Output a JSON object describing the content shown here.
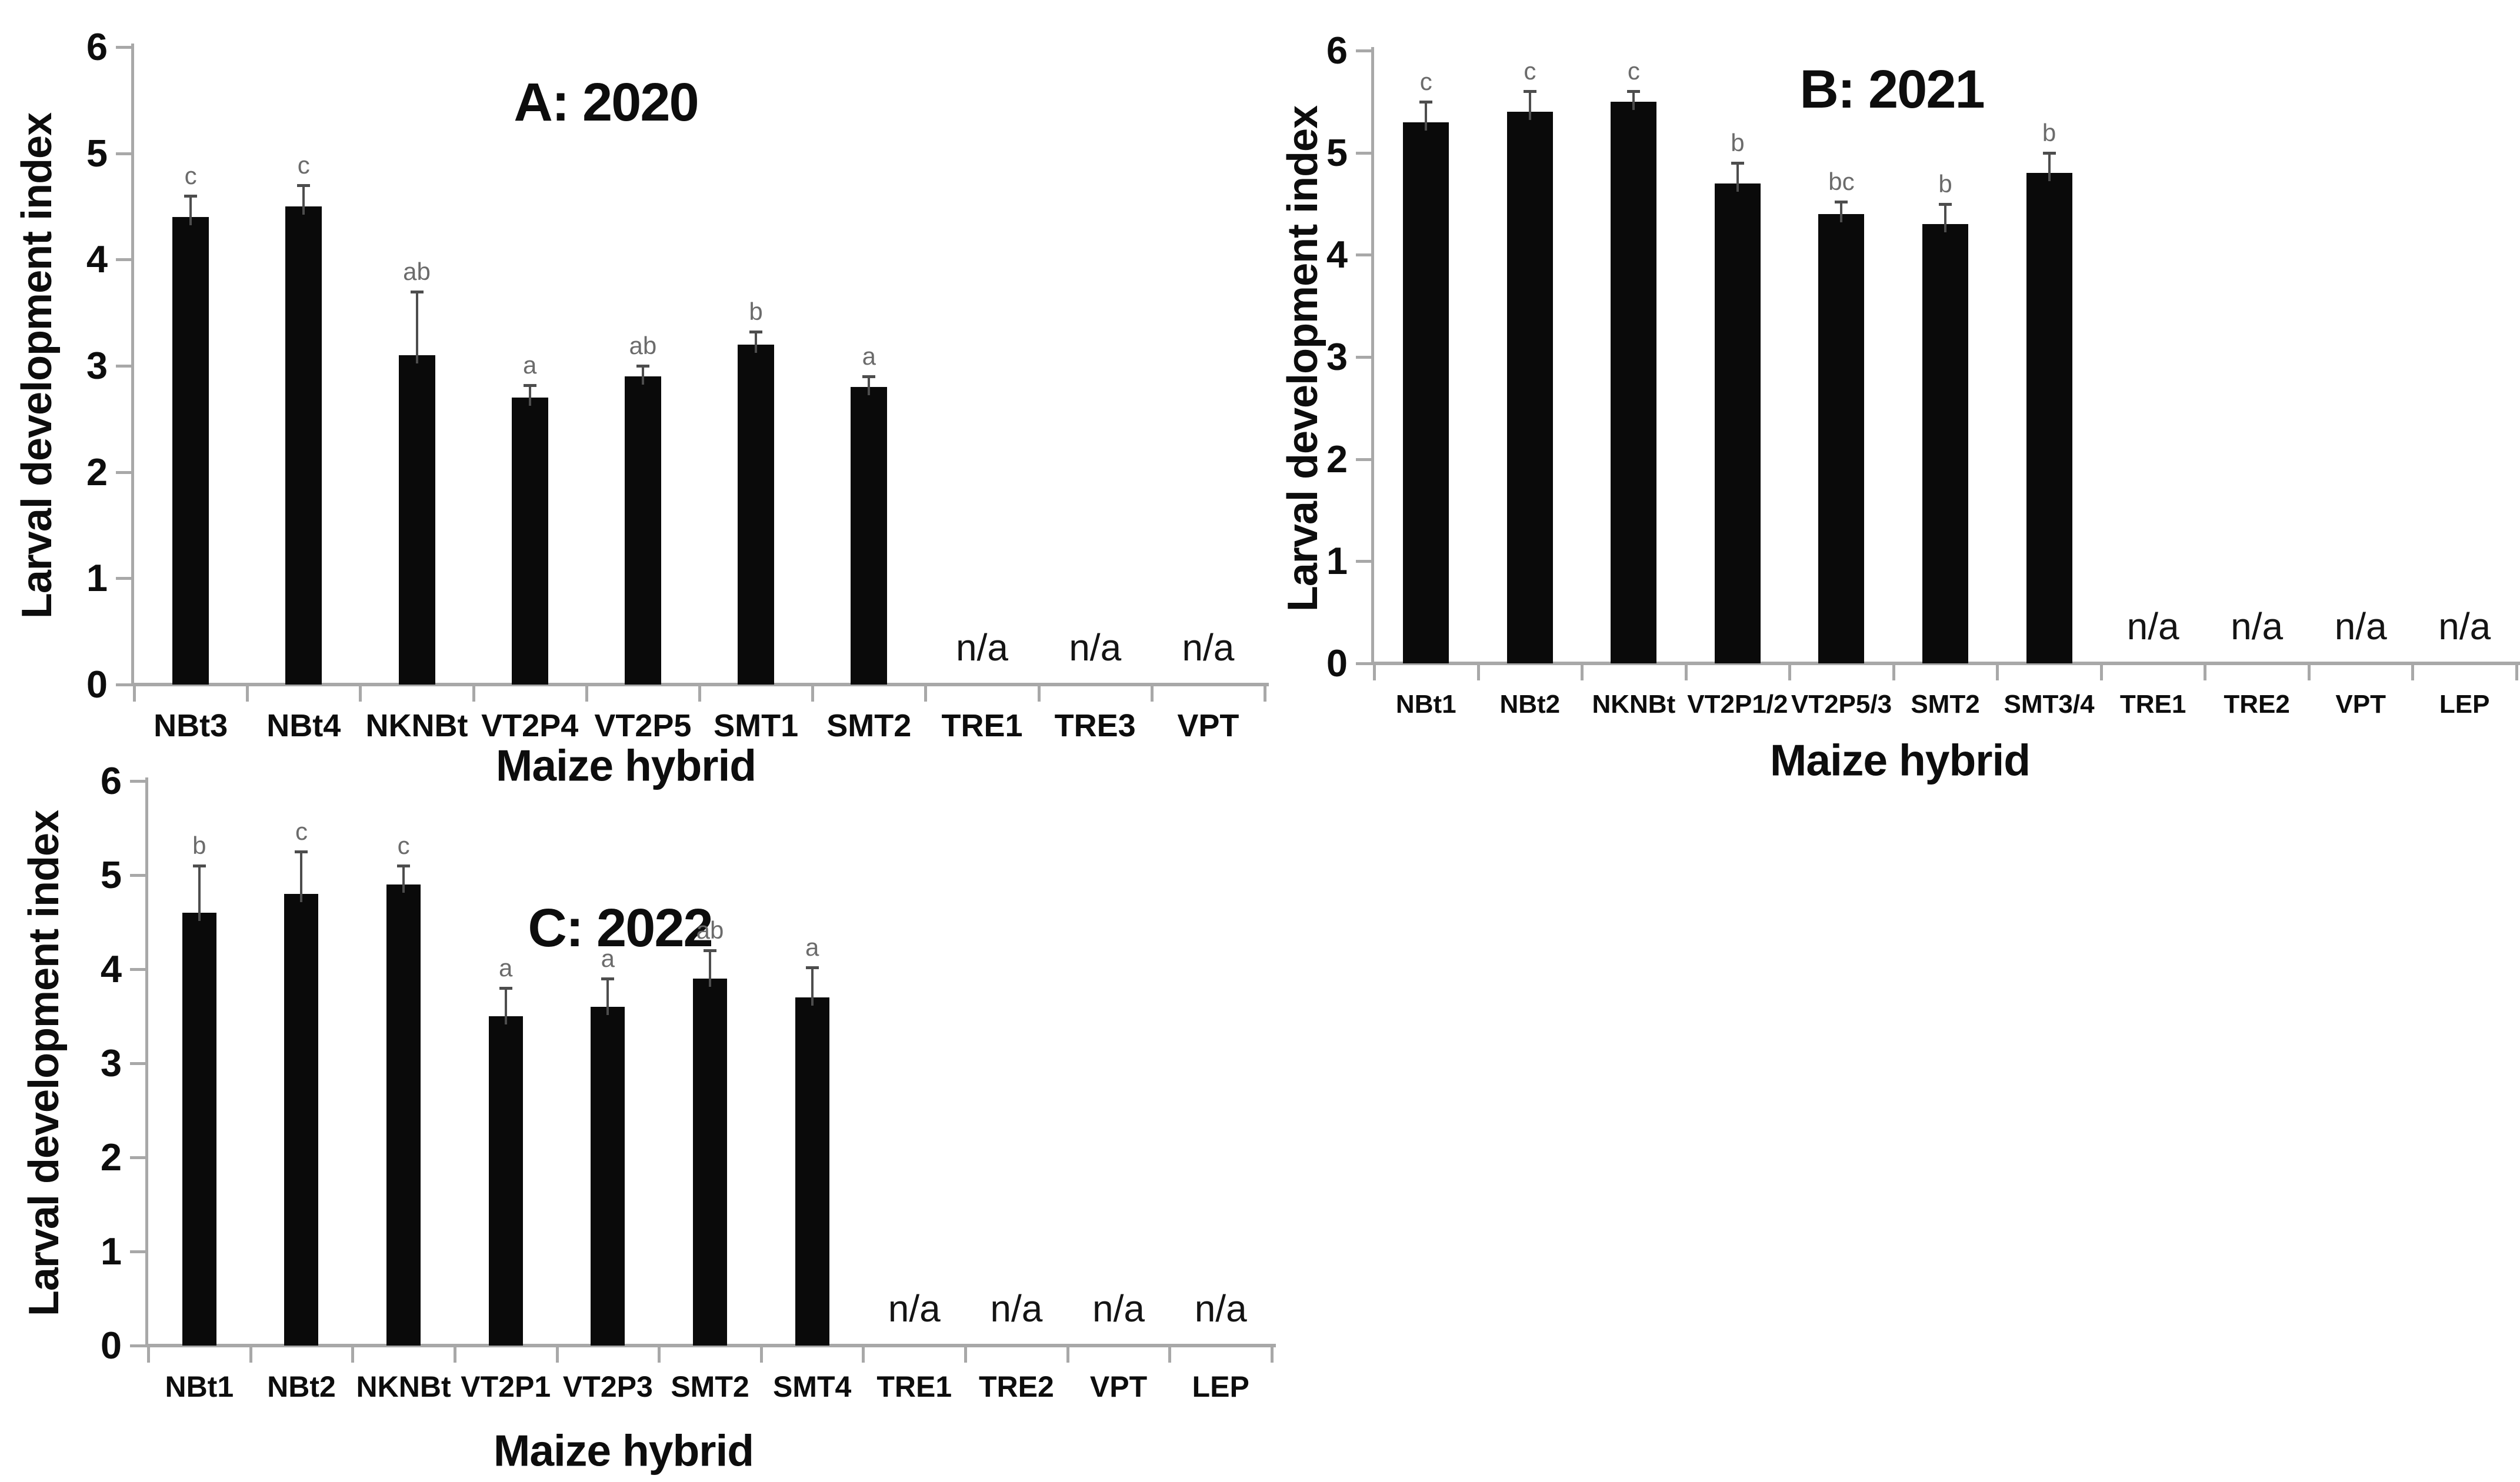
{
  "figure": {
    "background": "#ffffff",
    "colors": {
      "bar": "#0a0a0a",
      "axis_line": "#a8a8a8",
      "error_bar": "#4d4d4d",
      "sig_letter": "#6b6b6b",
      "text": "#141414"
    }
  },
  "chart_data": [
    {
      "id": "A",
      "type": "bar",
      "title": "A: 2020",
      "xlabel": "Maize hybrid",
      "ylabel": "Larval development index",
      "ylim": [
        0,
        6
      ],
      "yticks": [
        0,
        1,
        2,
        3,
        4,
        5,
        6
      ],
      "grid": false,
      "legend": "none",
      "na_text": "n/a",
      "categories": [
        "NBt3",
        "NBt4",
        "NKNBt",
        "VT2P4",
        "VT2P5",
        "SMT1",
        "SMT2",
        "TRE1",
        "TRE3",
        "VPT"
      ],
      "values": [
        4.4,
        4.5,
        3.1,
        2.7,
        2.9,
        3.2,
        2.8,
        null,
        null,
        null
      ],
      "errors": [
        0.2,
        0.2,
        0.6,
        0.12,
        0.1,
        0.12,
        0.1,
        null,
        null,
        null
      ],
      "sig_letters": [
        "c",
        "c",
        "ab",
        "a",
        "ab",
        "b",
        "a",
        null,
        null,
        null
      ]
    },
    {
      "id": "B",
      "type": "bar",
      "title": "B: 2021",
      "xlabel": "Maize hybrid",
      "ylabel": "Larval development index",
      "ylim": [
        0,
        6
      ],
      "yticks": [
        0,
        1,
        2,
        3,
        4,
        5,
        6
      ],
      "grid": false,
      "legend": "none",
      "na_text": "n/a",
      "categories": [
        "NBt1",
        "NBt2",
        "NKNBt",
        "VT2P1/2",
        "VT2P5/3",
        "SMT2",
        "SMT3/4",
        "TRE1",
        "TRE2",
        "VPT",
        "LEP"
      ],
      "values": [
        5.3,
        5.4,
        5.5,
        4.7,
        4.4,
        4.3,
        4.8,
        null,
        null,
        null,
        null
      ],
      "errors": [
        0.2,
        0.2,
        0.1,
        0.2,
        0.12,
        0.2,
        0.2,
        null,
        null,
        null,
        null
      ],
      "sig_letters": [
        "c",
        "c",
        "c",
        "b",
        "bc",
        "b",
        "b",
        null,
        null,
        null,
        null
      ]
    },
    {
      "id": "C",
      "type": "bar",
      "title": "C: 2022",
      "xlabel": "Maize hybrid",
      "ylabel": "Larval development index",
      "ylim": [
        0,
        6
      ],
      "yticks": [
        0,
        1,
        2,
        3,
        4,
        5,
        6
      ],
      "grid": false,
      "legend": "none",
      "na_text": "n/a",
      "categories": [
        "NBt1",
        "NBt2",
        "NKNBt",
        "VT2P1",
        "VT2P3",
        "SMT2",
        "SMT4",
        "TRE1",
        "TRE2",
        "VPT",
        "LEP"
      ],
      "values": [
        4.6,
        4.8,
        4.9,
        3.5,
        3.6,
        3.9,
        3.7,
        null,
        null,
        null,
        null
      ],
      "errors": [
        0.5,
        0.45,
        0.2,
        0.3,
        0.3,
        0.3,
        0.32,
        null,
        null,
        null,
        null
      ],
      "sig_letters": [
        "b",
        "c",
        "c",
        "a",
        "a",
        "ab",
        "a",
        null,
        null,
        null,
        null
      ]
    }
  ]
}
